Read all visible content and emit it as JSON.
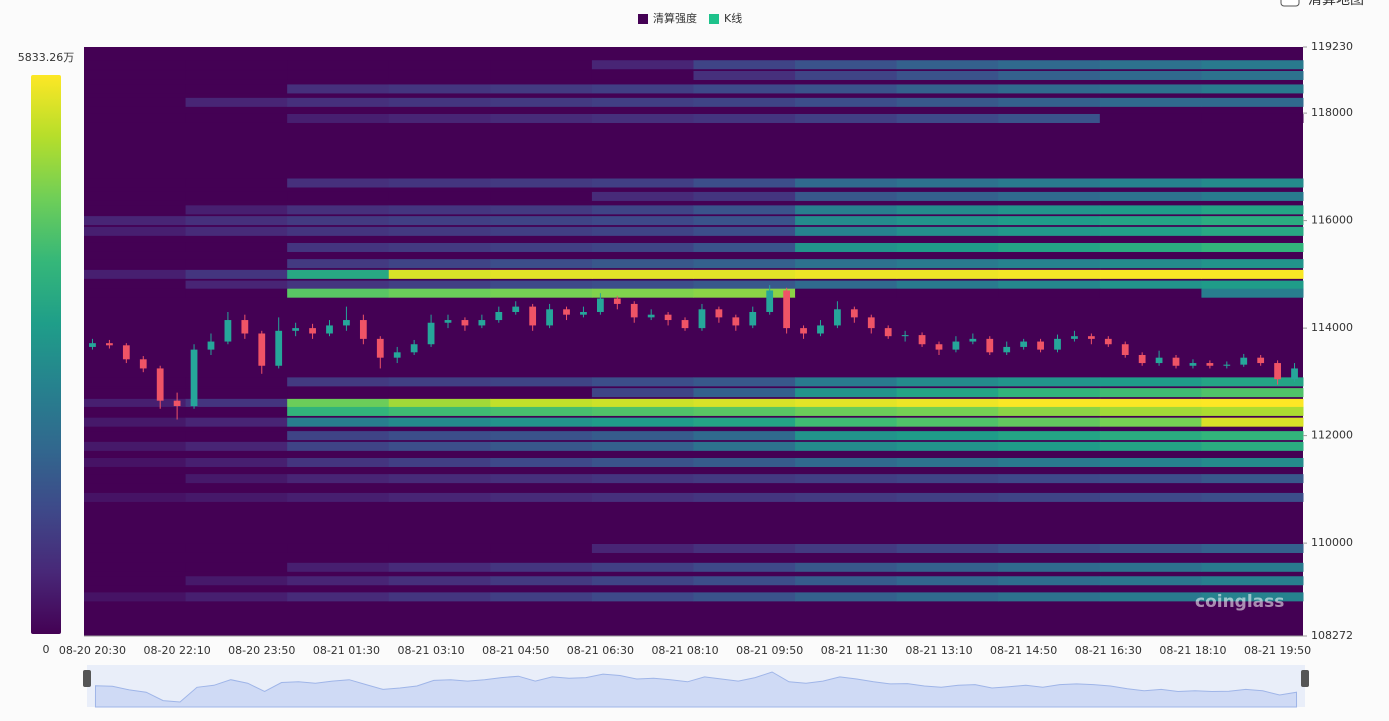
{
  "chart_data": {
    "type": "heatmap",
    "toggle_label": "清算地图",
    "watermark": "coinglass",
    "series": [
      {
        "name": "清算强度",
        "color": "#440154"
      },
      {
        "name": "K线",
        "color": "#1ec28b"
      }
    ],
    "colorbar": {
      "vmin": 0,
      "vmax": {
        "value": 5833.26,
        "label": "5833.26万"
      },
      "colors": [
        "#440154",
        "#482878",
        "#3e4989",
        "#31688e",
        "#26828e",
        "#1f9e89",
        "#35b779",
        "#6ece58",
        "#b5de2b",
        "#fde725"
      ]
    },
    "categories": [
      "08-20 20:30",
      null,
      null,
      null,
      null,
      "08-20 22:10",
      null,
      null,
      null,
      null,
      "08-20 23:50",
      null,
      null,
      null,
      null,
      "08-21 01:30",
      null,
      null,
      null,
      null,
      "08-21 03:10",
      null,
      null,
      null,
      null,
      "08-21 04:50",
      null,
      null,
      null,
      null,
      "08-21 06:30",
      null,
      null,
      null,
      null,
      "08-21 08:10",
      null,
      null,
      null,
      null,
      "08-21 09:50",
      null,
      null,
      null,
      null,
      "08-21 11:30",
      null,
      null,
      null,
      null,
      "08-21 13:10",
      null,
      null,
      null,
      null,
      "08-21 14:50",
      null,
      null,
      null,
      null,
      "08-21 16:30",
      null,
      null,
      null,
      null,
      "08-21 18:10",
      null,
      null,
      null,
      null,
      "08-21 19:50",
      null
    ],
    "ylim": [
      108272,
      119230
    ],
    "yticks": [
      119230,
      118000,
      116000,
      114000,
      112000,
      110000,
      108272
    ],
    "candles": {
      "up_color": "#26a69a",
      "down_color": "#ef5466",
      "open": [
        113650,
        113720,
        113680,
        113420,
        113250,
        112650,
        112550,
        113600,
        113750,
        114150,
        113900,
        113300,
        113950,
        114000,
        113900,
        114050,
        114150,
        113800,
        113450,
        113550,
        113700,
        114100,
        114150,
        114050,
        114150,
        114300,
        114400,
        114050,
        114350,
        114250,
        114300,
        114550,
        114450,
        114200,
        114250,
        114150,
        114000,
        114350,
        114200,
        114050,
        114300,
        114700,
        114000,
        113900,
        114050,
        114350,
        114200,
        114000,
        113850,
        113870,
        113700,
        113600,
        113750,
        113800,
        113550,
        113650,
        113750,
        113600,
        113800,
        113850,
        113800,
        113700,
        113500,
        113350,
        113450,
        113300,
        113350,
        113300,
        113320,
        113450,
        113350,
        113050
      ],
      "high": [
        113800,
        113780,
        113720,
        113480,
        113300,
        112800,
        113700,
        113900,
        114300,
        114250,
        113950,
        114200,
        114100,
        114080,
        114150,
        114400,
        114250,
        113850,
        113650,
        113780,
        114250,
        114250,
        114200,
        114250,
        114400,
        114500,
        114450,
        114450,
        114400,
        114400,
        114650,
        114600,
        114500,
        114350,
        114300,
        114200,
        114450,
        114400,
        114250,
        114400,
        114800,
        114750,
        114050,
        114150,
        114500,
        114400,
        114250,
        114050,
        113950,
        113920,
        113750,
        113850,
        113900,
        113850,
        113750,
        113800,
        113800,
        113880,
        113950,
        113900,
        113850,
        113750,
        113550,
        113580,
        113500,
        113420,
        113400,
        113380,
        113520,
        113500,
        113400,
        113350
      ],
      "low": [
        113600,
        113620,
        113350,
        113180,
        112500,
        112300,
        112500,
        113500,
        113700,
        113800,
        113150,
        113250,
        113850,
        113800,
        113850,
        113950,
        113700,
        113250,
        113350,
        113500,
        113650,
        114000,
        113950,
        114000,
        114100,
        114250,
        113950,
        114000,
        114150,
        114200,
        114250,
        114350,
        114100,
        114150,
        114050,
        113950,
        113950,
        114100,
        113950,
        114000,
        114250,
        113900,
        113800,
        113850,
        114000,
        114100,
        113900,
        113800,
        113750,
        113650,
        113500,
        113550,
        113700,
        113500,
        113500,
        113600,
        113550,
        113550,
        113750,
        113700,
        113650,
        113450,
        113300,
        113300,
        113250,
        113250,
        113250,
        113250,
        113280,
        113300,
        112950,
        113000
      ],
      "close": [
        113720,
        113680,
        113420,
        113250,
        112650,
        112550,
        113600,
        113750,
        114150,
        113900,
        113300,
        113950,
        114000,
        113900,
        114050,
        114150,
        113800,
        113450,
        113550,
        113700,
        114100,
        114150,
        114050,
        114150,
        114300,
        114400,
        114050,
        114350,
        114250,
        114300,
        114550,
        114450,
        114200,
        114250,
        114150,
        114000,
        114350,
        114200,
        114050,
        114300,
        114700,
        114000,
        113900,
        114050,
        114350,
        114200,
        114000,
        113850,
        113870,
        113700,
        113600,
        113750,
        113800,
        113550,
        113650,
        113750,
        113600,
        113800,
        113850,
        113800,
        113700,
        113500,
        113350,
        113450,
        113300,
        113350,
        113300,
        113320,
        113450,
        113350,
        113050,
        113250
      ]
    },
    "heatmap": {
      "levels": [
        {
          "price": 118900,
          "values": [
            0,
            0,
            0,
            0,
            0,
            600,
            1200,
            1500,
            1800,
            2000,
            2200,
            2400
          ]
        },
        {
          "price": 118700,
          "values": [
            0,
            0,
            0,
            0,
            0,
            0,
            800,
            1200,
            1500,
            1800,
            2000,
            2200
          ]
        },
        {
          "price": 118450,
          "values": [
            0,
            0,
            800,
            900,
            1000,
            1100,
            1300,
            1500,
            1800,
            2000,
            2200,
            2400
          ]
        },
        {
          "price": 118200,
          "values": [
            0,
            600,
            800,
            900,
            1000,
            1100,
            1200,
            1400,
            1600,
            1800,
            2000,
            2000
          ]
        },
        {
          "price": 117900,
          "values": [
            0,
            0,
            500,
            600,
            700,
            800,
            900,
            1100,
            1300,
            1500,
            0,
            0
          ]
        },
        {
          "price": 116700,
          "values": [
            0,
            0,
            800,
            900,
            1000,
            1100,
            1400,
            2000,
            2200,
            2400,
            2600,
            2800
          ]
        },
        {
          "price": 116450,
          "values": [
            0,
            0,
            0,
            0,
            0,
            700,
            900,
            1600,
            1800,
            2000,
            2200,
            2400
          ]
        },
        {
          "price": 116200,
          "values": [
            0,
            500,
            800,
            900,
            1000,
            1200,
            1500,
            2500,
            2800,
            3000,
            3200,
            3400
          ]
        },
        {
          "price": 116000,
          "values": [
            600,
            800,
            1000,
            1100,
            1200,
            1300,
            1500,
            2800,
            3000,
            3200,
            3400,
            3600
          ]
        },
        {
          "price": 115800,
          "values": [
            500,
            700,
            900,
            1000,
            1100,
            1200,
            1400,
            2600,
            2900,
            3100,
            3300,
            3500
          ]
        },
        {
          "price": 115500,
          "values": [
            0,
            0,
            900,
            1000,
            1100,
            1200,
            1500,
            3000,
            3200,
            3400,
            3600,
            3800
          ]
        },
        {
          "price": 115200,
          "values": [
            0,
            0,
            1000,
            1200,
            1400,
            1600,
            1800,
            2200,
            2400,
            2600,
            2800,
            3000
          ]
        },
        {
          "price": 115000,
          "values": [
            500,
            900,
            3500,
            5500,
            5600,
            5600,
            5600,
            5700,
            5700,
            5750,
            5800,
            5800
          ]
        },
        {
          "price": 114800,
          "values": [
            0,
            600,
            900,
            1100,
            1300,
            1400,
            1600,
            2000,
            2400,
            2700,
            3000,
            3200
          ]
        },
        {
          "price": 114650,
          "values": [
            0,
            0,
            4300,
            4500,
            4600,
            4700,
            4800,
            0,
            0,
            0,
            0,
            2500
          ]
        },
        {
          "price": 113000,
          "values": [
            0,
            0,
            1000,
            1100,
            1200,
            1400,
            1600,
            2400,
            2800,
            3000,
            3200,
            3400
          ]
        },
        {
          "price": 112800,
          "values": [
            0,
            0,
            0,
            0,
            0,
            1200,
            1800,
            3000,
            3400,
            3800,
            4000,
            4200
          ]
        },
        {
          "price": 112600,
          "values": [
            500,
            900,
            4500,
            5000,
            5300,
            5400,
            5500,
            5600,
            5700,
            5800,
            5800,
            5833.26
          ]
        },
        {
          "price": 112450,
          "values": [
            0,
            0,
            3800,
            4000,
            4100,
            4200,
            4300,
            4500,
            4600,
            4800,
            5000,
            5100
          ]
        },
        {
          "price": 112250,
          "values": [
            400,
            600,
            2500,
            2800,
            3000,
            3200,
            3400,
            4000,
            4200,
            4400,
            4600,
            5500
          ]
        },
        {
          "price": 112000,
          "values": [
            0,
            0,
            1200,
            1400,
            1500,
            1700,
            2000,
            3000,
            3200,
            3400,
            3600,
            3800
          ]
        },
        {
          "price": 111800,
          "values": [
            400,
            600,
            1200,
            1400,
            1600,
            1800,
            2200,
            2800,
            3000,
            3200,
            3400,
            3600
          ]
        },
        {
          "price": 111500,
          "values": [
            300,
            500,
            900,
            1100,
            1300,
            1500,
            1700,
            2000,
            2200,
            2400,
            2600,
            2800
          ]
        },
        {
          "price": 111200,
          "values": [
            0,
            400,
            600,
            700,
            800,
            900,
            1000,
            1100,
            1200,
            1300,
            1400,
            1600
          ]
        },
        {
          "price": 110850,
          "values": [
            300,
            400,
            500,
            600,
            700,
            800,
            900,
            1000,
            1100,
            1200,
            1300,
            1400
          ]
        },
        {
          "price": 109900,
          "values": [
            0,
            0,
            0,
            0,
            0,
            600,
            800,
            1000,
            1200,
            1400,
            1600,
            1800
          ]
        },
        {
          "price": 109550,
          "values": [
            0,
            0,
            500,
            700,
            900,
            1100,
            1300,
            1600,
            1800,
            2000,
            2200,
            2400
          ]
        },
        {
          "price": 109300,
          "values": [
            0,
            400,
            600,
            800,
            1000,
            1200,
            1400,
            1700,
            1900,
            2100,
            2300,
            2500
          ]
        },
        {
          "price": 109000,
          "values": [
            300,
            500,
            700,
            900,
            1100,
            1300,
            1500,
            1800,
            2000,
            2200,
            2400,
            2600
          ]
        }
      ]
    }
  }
}
